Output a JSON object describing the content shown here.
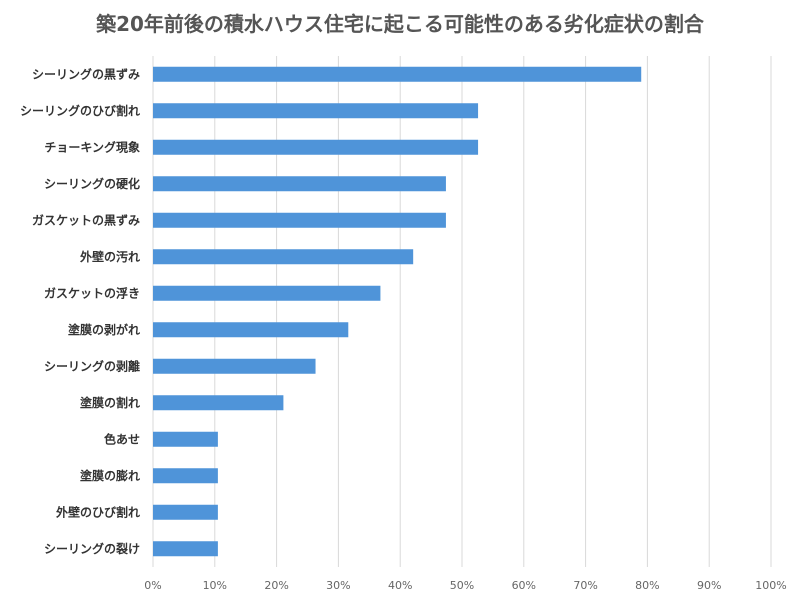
{
  "chart_data": {
    "type": "bar",
    "orientation": "horizontal",
    "title": "築20年前後の積水ハウス住宅に起こる可能性のある劣化症状の割合",
    "xlabel": "",
    "ylabel": "",
    "categories": [
      "シーリングの黒ずみ",
      "シーリングのひび割れ",
      "チョーキング現象",
      "シーリングの硬化",
      "ガスケットの黒ずみ",
      "外壁の汚れ",
      "ガスケットの浮き",
      "塗膜の剥がれ",
      "シーリングの剥離",
      "塗膜の割れ",
      "色あせ",
      "塗膜の膨れ",
      "外壁のひび割れ",
      "シーリングの裂け"
    ],
    "values": [
      79,
      52.6,
      52.6,
      47.4,
      47.4,
      42.1,
      36.8,
      31.6,
      26.3,
      21.1,
      10.5,
      10.5,
      10.5,
      10.5
    ],
    "xlim": [
      0,
      100
    ],
    "xticks": [
      "0%",
      "10%",
      "20%",
      "30%",
      "40%",
      "50%",
      "60%",
      "70%",
      "80%",
      "90%",
      "100%"
    ],
    "grid": true,
    "legend": "none",
    "bar_color": "#4f94d9",
    "grid_color": "#d9d9d9"
  }
}
